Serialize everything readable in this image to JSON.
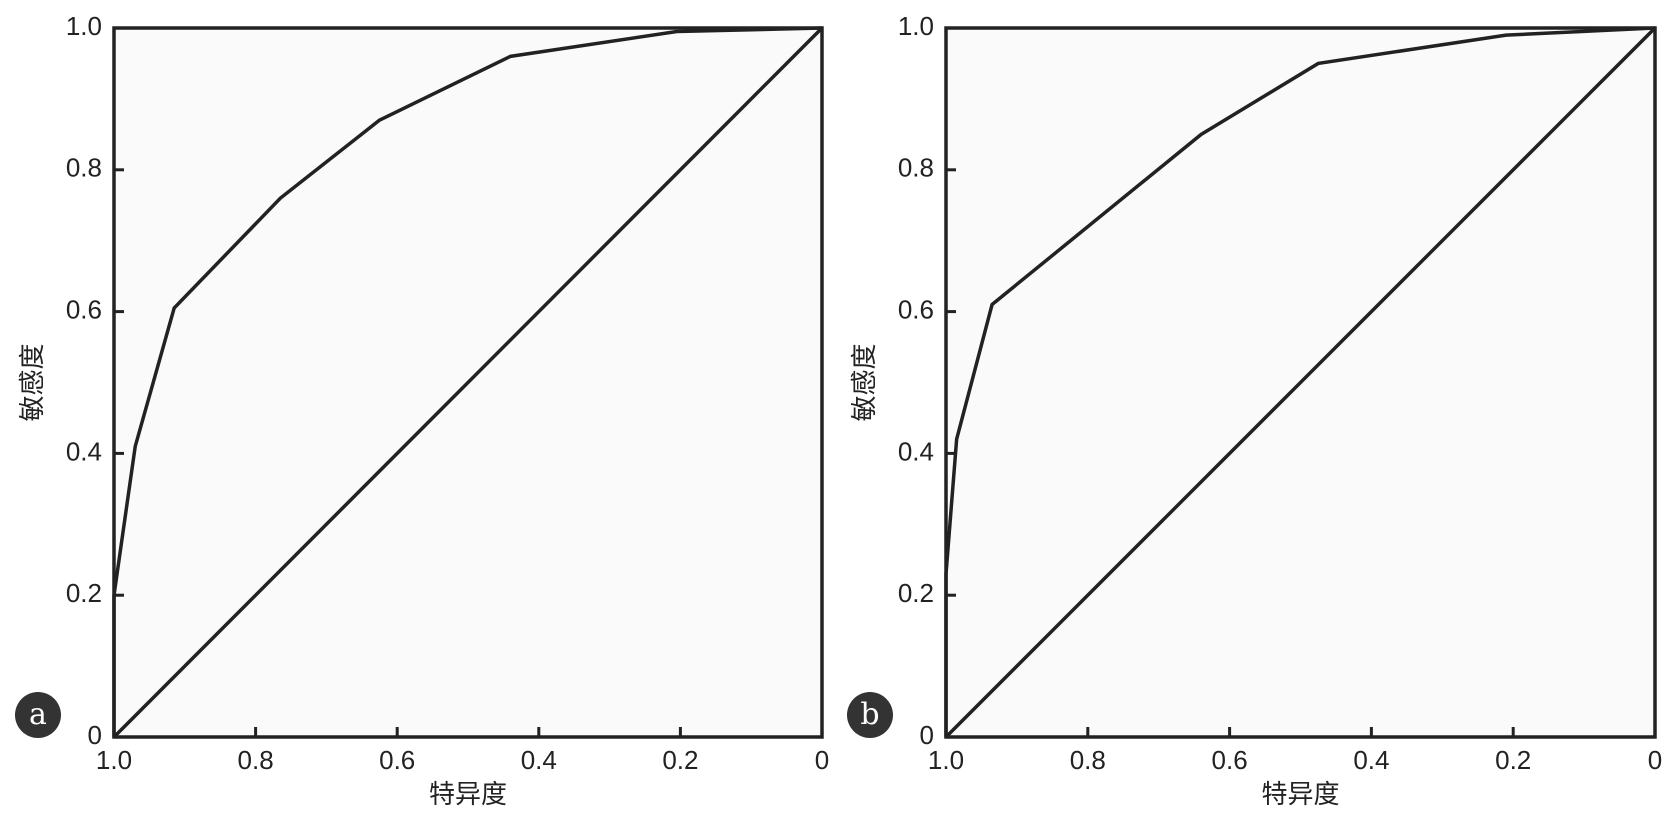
{
  "chart_data": [
    {
      "type": "line",
      "panel": "a",
      "xlabel": "特异度",
      "ylabel": "敏感度",
      "xlim": [
        1,
        0
      ],
      "ylim": [
        0,
        1
      ],
      "xticks": [
        {
          "value": 1,
          "label": "1.0"
        },
        0.8,
        0.6,
        0.4,
        0.2,
        0
      ],
      "yticks": [
        0,
        0.2,
        0.4,
        0.6,
        0.8,
        {
          "value": 1,
          "label": "1.0"
        }
      ],
      "series": [
        {
          "color": "#222222",
          "x": [
            1,
            1,
            0.97,
            0.915,
            0.765,
            0.625,
            0.44,
            0.205,
            0
          ],
          "values": [
            0,
            0.2,
            0.41,
            0.605,
            0.76,
            0.87,
            0.96,
            0.995,
            1
          ]
        },
        {
          "color": "#222222",
          "x": [
            1,
            0
          ],
          "values": [
            0,
            1
          ]
        }
      ]
    },
    {
      "type": "line",
      "panel": "b",
      "xlabel": "特异度",
      "ylabel": "敏感度",
      "xlim": [
        1,
        0
      ],
      "ylim": [
        0,
        1
      ],
      "xticks": [
        {
          "value": 1,
          "label": "1.0"
        },
        0.8,
        0.6,
        0.4,
        0.2,
        0
      ],
      "yticks": [
        0,
        0.2,
        0.4,
        0.6,
        0.8,
        {
          "value": 1,
          "label": "1.0"
        }
      ],
      "series": [
        {
          "color": "#222222",
          "x": [
            1,
            1,
            0.985,
            0.935,
            0.64,
            0.475,
            0.21,
            0
          ],
          "values": [
            0,
            0.23,
            0.42,
            0.61,
            0.85,
            0.95,
            0.99,
            1
          ]
        },
        {
          "color": "#222222",
          "x": [
            1,
            0
          ],
          "values": [
            0,
            1
          ]
        }
      ]
    }
  ]
}
